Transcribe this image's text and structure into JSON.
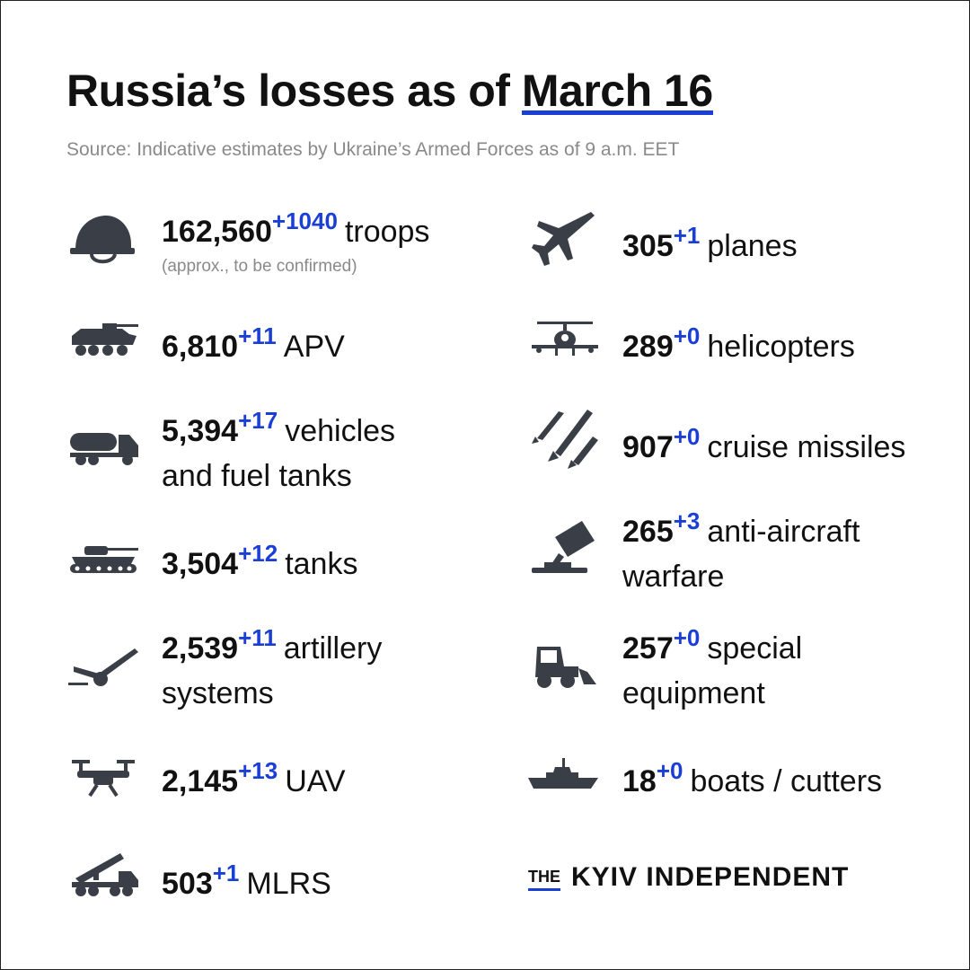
{
  "title": {
    "prefix": "Russia’s losses as of",
    "date": "March 16"
  },
  "source": "Source: Indicative estimates by Ukraine’s Armed Forces as of 9 a.m. EET",
  "left": [
    {
      "icon": "helmet-icon",
      "value": "162,560",
      "delta": "+1040",
      "label": "troops",
      "note": "(approx., to be confirmed)"
    },
    {
      "icon": "apv-icon",
      "value": "6,810",
      "delta": "+11",
      "label": "APV"
    },
    {
      "icon": "fuel-truck-icon",
      "value": "5,394",
      "delta": "+17",
      "label": "vehicles",
      "label2": "and fuel tanks"
    },
    {
      "icon": "tank-icon",
      "value": "3,504",
      "delta": "+12",
      "label": "tanks"
    },
    {
      "icon": "artillery-icon",
      "value": "2,539",
      "delta": "+11",
      "label": "artillery",
      "label2": "systems"
    },
    {
      "icon": "drone-icon",
      "value": "2,145",
      "delta": "+13",
      "label": "UAV"
    },
    {
      "icon": "mlrs-icon",
      "value": "503",
      "delta": "+1",
      "label": "MLRS"
    }
  ],
  "right": [
    {
      "icon": "plane-icon",
      "value": "305",
      "delta": "+1",
      "label": "planes"
    },
    {
      "icon": "helicopter-icon",
      "value": "289",
      "delta": "+0",
      "label": "helicopters"
    },
    {
      "icon": "missiles-icon",
      "value": "907",
      "delta": "+0",
      "label": "cruise missiles"
    },
    {
      "icon": "anti-aircraft-icon",
      "value": "265",
      "delta": "+3",
      "label": "anti-aircraft",
      "label2": "warfare"
    },
    {
      "icon": "loader-icon",
      "value": "257",
      "delta": "+0",
      "label": "special",
      "label2": "equipment"
    },
    {
      "icon": "ship-icon",
      "value": "18",
      "delta": "+0",
      "label": "boats / cutters"
    }
  ],
  "logo": {
    "the": "THE",
    "name": "KYIV INDEPENDENT"
  },
  "colors": {
    "accent": "#1a3fd6",
    "icon": "#3a3f47",
    "muted": "#8a8a8a"
  }
}
